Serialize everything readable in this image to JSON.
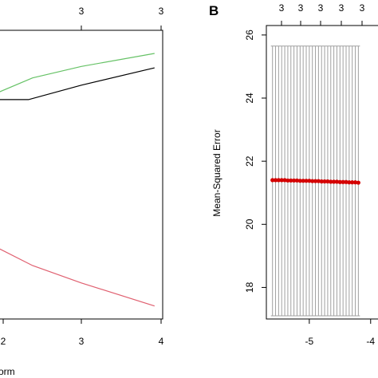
{
  "chart_data": [
    {
      "type": "line",
      "panel_label": "",
      "xlabel": "orm",
      "ylabel": "",
      "x_ticks": [
        "2",
        "3",
        "4"
      ],
      "top_ticks": [
        "3",
        "3"
      ],
      "xlim": [
        1.98,
        4.0
      ],
      "ylim": [
        0,
        1
      ],
      "grid": false,
      "series": [
        {
          "color": "#66c266",
          "x": [
            1.98,
            2.4,
            3.0,
            3.9
          ],
          "y": [
            0.785,
            0.835,
            0.875,
            0.92
          ]
        },
        {
          "color": "#000000",
          "x": [
            1.98,
            2.35,
            3.0,
            3.9
          ],
          "y": [
            0.76,
            0.76,
            0.81,
            0.87
          ]
        },
        {
          "color": "#e06070",
          "x": [
            1.98,
            2.4,
            3.0,
            3.9
          ],
          "y": [
            0.245,
            0.185,
            0.125,
            0.045
          ]
        }
      ]
    },
    {
      "type": "scatter",
      "panel_label": "B",
      "xlabel": "",
      "ylabel": "Mean-Squared Error",
      "x_ticks": [
        "-5",
        "-4"
      ],
      "y_ticks": [
        "18",
        "20",
        "22",
        "24",
        "26"
      ],
      "top_ticks": [
        "3",
        "3",
        "3",
        "3",
        "3",
        "3"
      ],
      "xlim": [
        -5.7,
        -3.75
      ],
      "ylim": [
        17.0,
        26.3
      ],
      "grid": false,
      "points": {
        "color": "#d40000",
        "x": [
          -5.6,
          -5.55,
          -5.5,
          -5.45,
          -5.4,
          -5.35,
          -5.3,
          -5.25,
          -5.2,
          -5.15,
          -5.1,
          -5.05,
          -5.0,
          -4.95,
          -4.9,
          -4.85,
          -4.8,
          -4.75,
          -4.7,
          -4.65,
          -4.6,
          -4.55,
          -4.5,
          -4.45,
          -4.4,
          -4.35,
          -4.3,
          -4.25,
          -4.2
        ],
        "y": [
          21.4,
          21.4,
          21.4,
          21.4,
          21.4,
          21.39,
          21.39,
          21.39,
          21.39,
          21.38,
          21.38,
          21.38,
          21.38,
          21.37,
          21.37,
          21.37,
          21.36,
          21.36,
          21.36,
          21.35,
          21.35,
          21.35,
          21.34,
          21.34,
          21.34,
          21.33,
          21.33,
          21.33,
          21.32
        ]
      },
      "error_bars": {
        "color": "#a0a0a0",
        "lower": 17.1,
        "upper": 25.65
      }
    }
  ]
}
